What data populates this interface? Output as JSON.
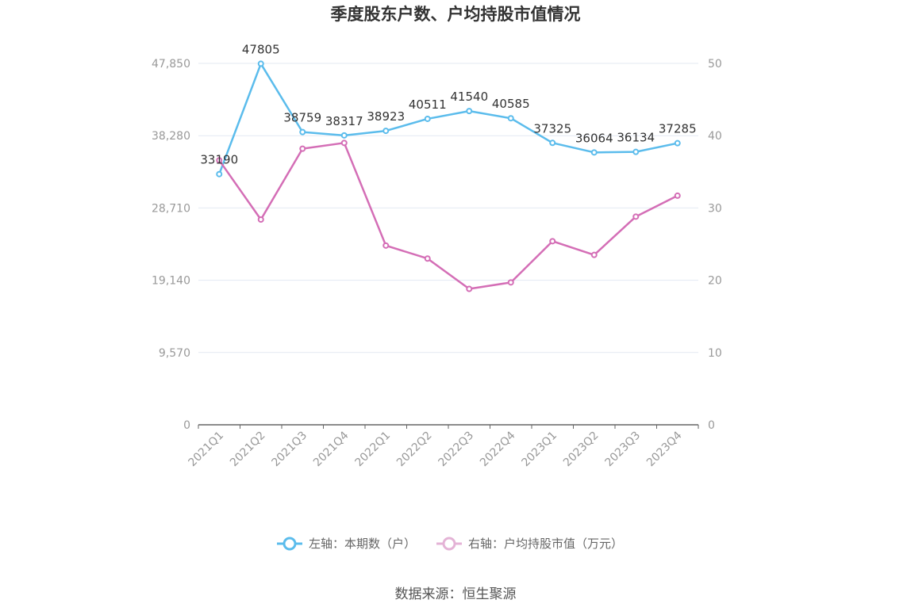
{
  "chart_data": {
    "type": "line",
    "title": "季度股东户数、户均持股市值情况",
    "categories": [
      "2021Q1",
      "2021Q2",
      "2021Q3",
      "2021Q4",
      "2022Q1",
      "2022Q2",
      "2022Q3",
      "2022Q4",
      "2023Q1",
      "2023Q2",
      "2023Q3",
      "2023Q4"
    ],
    "y_left": {
      "ylim": [
        0,
        47850
      ],
      "ticks": [
        "0",
        "9,570",
        "19,140",
        "28,710",
        "38,280",
        "47,850"
      ],
      "tick_values": [
        0,
        9570,
        19140,
        28710,
        38280,
        47850
      ]
    },
    "y_right": {
      "ylim": [
        0,
        50
      ],
      "ticks": [
        "0",
        "10",
        "20",
        "30",
        "40",
        "50"
      ],
      "tick_values": [
        0,
        10,
        20,
        30,
        40,
        50
      ]
    },
    "series": [
      {
        "name": "左轴：本期数（户）",
        "axis": "left",
        "color": "#5bbcec",
        "values": [
          33190,
          47805,
          38759,
          38317,
          38923,
          40511,
          41540,
          40585,
          37325,
          36064,
          36134,
          37285
        ],
        "labels": [
          "33190",
          "47805",
          "38759",
          "38317",
          "38923",
          "40511",
          "41540",
          "40585",
          "37325",
          "36064",
          "36134",
          "37285"
        ]
      },
      {
        "name": "右轴：户均持股市值（万元）",
        "axis": "right",
        "color": "#d46eb6",
        "values": [
          36.6,
          28.4,
          38.2,
          39.0,
          24.8,
          23.0,
          18.8,
          19.7,
          25.4,
          23.5,
          28.8,
          31.7
        ]
      }
    ],
    "grid": true,
    "legend": "bottom"
  },
  "source": "数据来源：恒生聚源"
}
